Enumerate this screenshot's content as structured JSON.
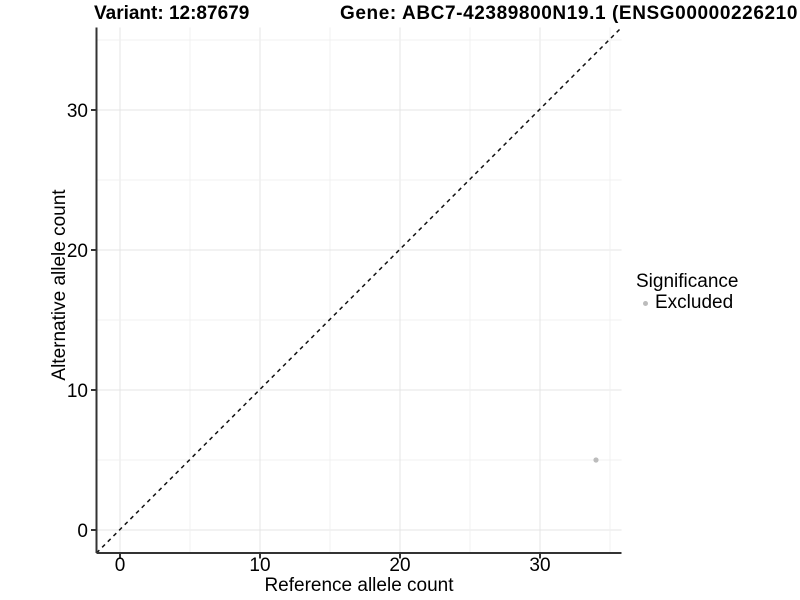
{
  "chart_data": {
    "type": "scatter",
    "title_left": "Variant: 12:87679",
    "title_right": "Gene: ABC7-42389800N19.1 (ENSG00000226210",
    "xlabel": "Reference allele count",
    "ylabel": "Alternative allele count",
    "xlim": [
      -1.7,
      35.9
    ],
    "ylim": [
      -1.7,
      35.9
    ],
    "x_ticks": [
      0,
      10,
      20,
      30
    ],
    "y_ticks": [
      0,
      10,
      20,
      30
    ],
    "grid": true,
    "grid_interval": 5,
    "points": [
      {
        "x": 34,
        "y": 5,
        "series": "Excluded"
      }
    ],
    "reference_line": {
      "type": "identity-y-equals-x",
      "style": "dashed",
      "color": "#111111"
    },
    "legend": {
      "title": "Significance",
      "position": "right",
      "entries": [
        {
          "label": "Excluded",
          "color": "#bcbcbc"
        }
      ]
    },
    "colors": {
      "point": "#bcbcbc",
      "grid_major": "#e4e4e4",
      "grid_minor": "#f0f0f0",
      "axis": "#333333",
      "text": "#000000"
    }
  }
}
